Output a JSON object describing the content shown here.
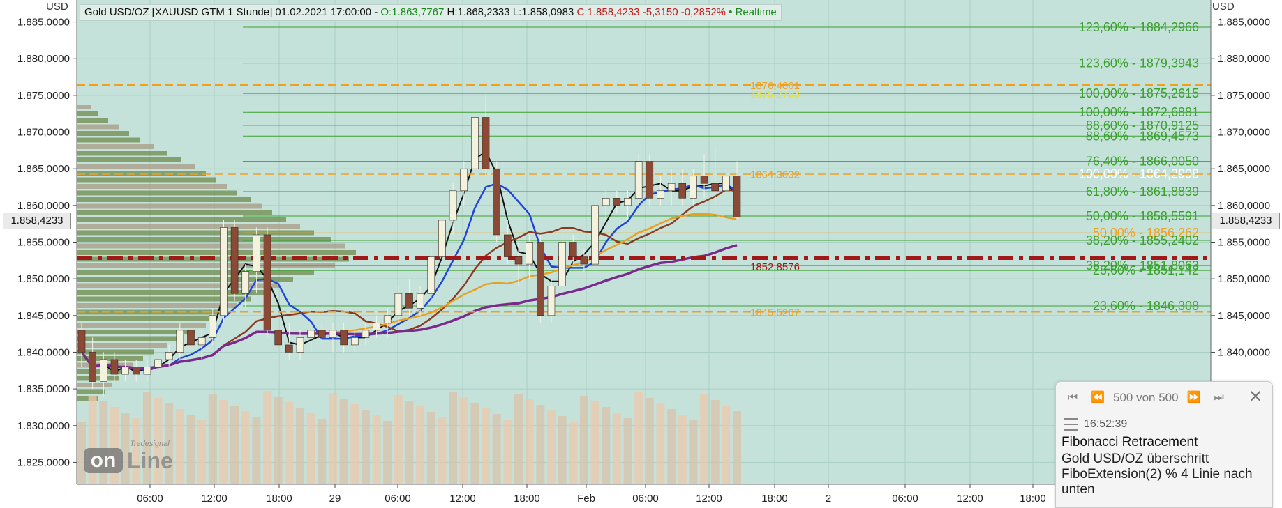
{
  "header": {
    "instrument": "Gold USD/OZ [XAUUSD GTM 1 Stunde] 01.02.2021 17:00:00 -",
    "open": "O:1.863,7767",
    "high": "H:1.868,2333",
    "low": "L:1.858,0983",
    "close": "C:1.858,4233 -5,3150 -0,2852%",
    "realtime": "• Realtime"
  },
  "axis": {
    "unit_left": "USD",
    "unit_right": "USD",
    "current_price": "1.858,4233"
  },
  "colors": {
    "plot_bg": "#c5e2da",
    "bullish": "#f2f2df",
    "bearish": "#8b4a35",
    "fibo_green": "#3aa12e",
    "fibo_orange": "#f0a020",
    "support_red": "#a01818"
  },
  "chart_data": {
    "type": "candlestick",
    "ylim": [
      1822,
      1888
    ],
    "y_ticks": [
      1885,
      1880,
      1875,
      1870,
      1865,
      1860,
      1855,
      1850,
      1845,
      1840,
      1835,
      1830,
      1825
    ],
    "y_tick_labels": [
      "1.885,0000",
      "1.880,0000",
      "1.875,0000",
      "1.870,0000",
      "1.865,0000",
      "1.860,0000",
      "1.855,0000",
      "1.850,0000",
      "1.845,0000",
      "1.840,0000",
      "1.835,0000",
      "1.830,0000",
      "1.825,0000"
    ],
    "x_tick_labels": [
      "06:00",
      "12:00",
      "18:00",
      "29",
      "06:00",
      "12:00",
      "18:00",
      "Feb",
      "06:00",
      "12:00",
      "18:00",
      "2",
      "06:00",
      "12:00",
      "18:00"
    ],
    "candles": [
      [
        1843,
        1844,
        1838,
        1840
      ],
      [
        1840,
        1842,
        1835,
        1836
      ],
      [
        1836,
        1840,
        1834,
        1839
      ],
      [
        1839,
        1840,
        1836,
        1837
      ],
      [
        1837,
        1839,
        1836,
        1838
      ],
      [
        1838,
        1839,
        1836,
        1837
      ],
      [
        1837,
        1839,
        1836,
        1838
      ],
      [
        1838,
        1840,
        1837,
        1839
      ],
      [
        1839,
        1841,
        1838,
        1840
      ],
      [
        1840,
        1844,
        1839,
        1843
      ],
      [
        1843,
        1845,
        1840,
        1841
      ],
      [
        1841,
        1843,
        1839,
        1842
      ],
      [
        1842,
        1846,
        1841,
        1845
      ],
      [
        1845,
        1858,
        1844,
        1857
      ],
      [
        1857,
        1858,
        1847,
        1848
      ],
      [
        1848,
        1852,
        1846,
        1851
      ],
      [
        1851,
        1857,
        1848,
        1856
      ],
      [
        1856,
        1857,
        1842,
        1843
      ],
      [
        1843,
        1845,
        1836,
        1841
      ],
      [
        1841,
        1844,
        1839,
        1840
      ],
      [
        1840,
        1843,
        1839,
        1842
      ],
      [
        1842,
        1844,
        1840,
        1843
      ],
      [
        1843,
        1844,
        1841,
        1842
      ],
      [
        1842,
        1844,
        1840,
        1843
      ],
      [
        1843,
        1844,
        1840,
        1841
      ],
      [
        1841,
        1843,
        1840,
        1842
      ],
      [
        1842,
        1844,
        1841,
        1843
      ],
      [
        1843,
        1845,
        1842,
        1844
      ],
      [
        1844,
        1846,
        1842,
        1845
      ],
      [
        1845,
        1849,
        1844,
        1848
      ],
      [
        1848,
        1850,
        1845,
        1846
      ],
      [
        1846,
        1849,
        1845,
        1848
      ],
      [
        1848,
        1854,
        1847,
        1853
      ],
      [
        1853,
        1859,
        1852,
        1858
      ],
      [
        1858,
        1863,
        1856,
        1862
      ],
      [
        1862,
        1866,
        1860,
        1865
      ],
      [
        1865,
        1873,
        1864,
        1872
      ],
      [
        1872,
        1875,
        1864,
        1865
      ],
      [
        1865,
        1866,
        1855,
        1856
      ],
      [
        1856,
        1858,
        1852,
        1853
      ],
      [
        1853,
        1855,
        1849,
        1852
      ],
      [
        1852,
        1856,
        1850,
        1855
      ],
      [
        1855,
        1856,
        1844,
        1845
      ],
      [
        1845,
        1850,
        1844,
        1849
      ],
      [
        1849,
        1856,
        1848,
        1855
      ],
      [
        1855,
        1856,
        1852,
        1853
      ],
      [
        1853,
        1854,
        1851,
        1852
      ],
      [
        1852,
        1861,
        1851,
        1860
      ],
      [
        1860,
        1862,
        1858,
        1861
      ],
      [
        1861,
        1862,
        1859,
        1860
      ],
      [
        1860,
        1862,
        1858,
        1861
      ],
      [
        1861,
        1867,
        1860,
        1866
      ],
      [
        1866,
        1867,
        1860,
        1861
      ],
      [
        1861,
        1864,
        1860,
        1862
      ],
      [
        1862,
        1865,
        1860,
        1863
      ],
      [
        1863,
        1865,
        1860,
        1861
      ],
      [
        1861,
        1865,
        1860,
        1864
      ],
      [
        1864,
        1867,
        1861,
        1863
      ],
      [
        1863,
        1868,
        1860,
        1862
      ],
      [
        1862,
        1865,
        1861,
        1864
      ],
      [
        1864,
        1866,
        1858,
        1858.42
      ]
    ],
    "fibonacci_levels": [
      {
        "label": "123,60% - 1884,2966",
        "value": 1884.2966,
        "color": "#3aa12e"
      },
      {
        "label": "123,60% - 1879,3943",
        "value": 1879.3943,
        "color": "#3aa12e"
      },
      {
        "label": "100,00% - 1875,2615",
        "value": 1875.2615,
        "color": "#3aa12e"
      },
      {
        "label": "100,00% - 1872,6881",
        "value": 1872.6881,
        "color": "#3aa12e"
      },
      {
        "label": "88,60% - 1870,9125",
        "value": 1870.9125,
        "color": "#3aa12e"
      },
      {
        "label": "88,60% - 1869,4573",
        "value": 1869.4573,
        "color": "#3aa12e"
      },
      {
        "label": "76,40% - 1866,0050",
        "value": 1866.005,
        "color": "#3aa12e"
      },
      {
        "label": "100,00% - 1864,2998",
        "value": 1864.2998,
        "color": "#ffffff"
      },
      {
        "label": "61,80% - 1861,8839",
        "value": 1861.8839,
        "color": "#3aa12e"
      },
      {
        "label": "50,00% - 1858,5591",
        "value": 1858.5591,
        "color": "#3aa12e"
      },
      {
        "label": "50,00% - 1856,262",
        "value": 1856.262,
        "color": "#f0a020"
      },
      {
        "label": "38,20% - 1855,2402",
        "value": 1855.2402,
        "color": "#3aa12e"
      },
      {
        "label": "38,20% - 1851,8063",
        "value": 1851.8063,
        "color": "#3aa12e"
      },
      {
        "label": "23,60% - 1851,142",
        "value": 1851.142,
        "color": "#3aa12e"
      },
      {
        "label": "23,60% - 1846,308",
        "value": 1846.308,
        "color": "#3aa12e"
      }
    ],
    "price_annotations": [
      {
        "label": "1876,4061",
        "value": 1876.4061,
        "color": "#f0a020"
      },
      {
        "label": "1875,2763",
        "value": 1875.2763,
        "color": "#f0e020"
      },
      {
        "label": "1864,3032",
        "value": 1864.3032,
        "color": "#f0a020"
      },
      {
        "label": "1852,8576",
        "value": 1852.8576,
        "color": "#a01818"
      },
      {
        "label": "1845,5267",
        "value": 1845.5267,
        "color": "#f0a020"
      }
    ]
  },
  "alert": {
    "counter": "500 von 500",
    "time": "16:52:39",
    "title": "Fibonacci Retracement",
    "message": "Gold USD/OZ überschritt FiboExtension(2) % 4 Linie nach unten"
  },
  "watermark": {
    "brand_on": "on",
    "brand_line": "Line",
    "brand_sub": "Tradesignal"
  }
}
